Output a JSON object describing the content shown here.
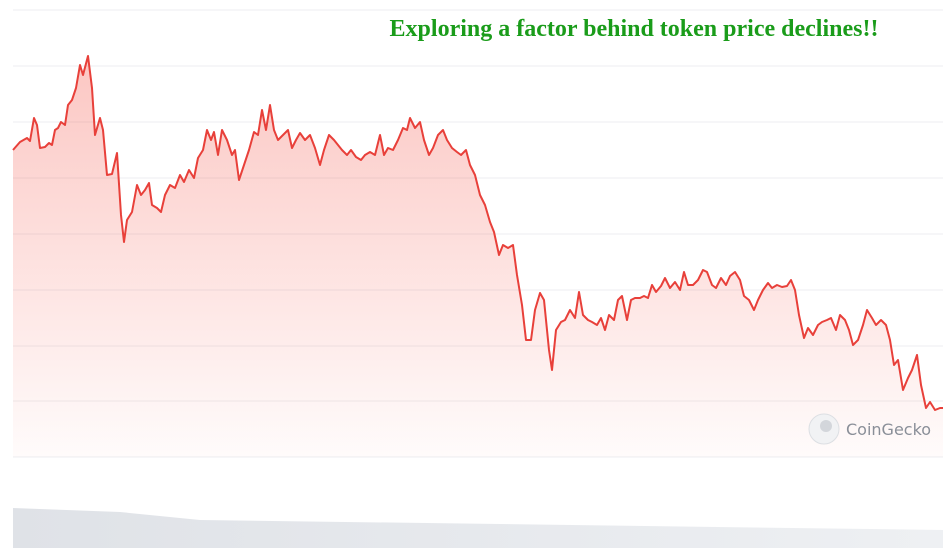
{
  "chart_data": {
    "type": "line",
    "title": "Exploring a factor behind token price declines!!",
    "watermark": "CoinGecko",
    "color": "#e8403a",
    "x": [
      13,
      20,
      27,
      30,
      34,
      37,
      40,
      45,
      49,
      52,
      55,
      58,
      61,
      65,
      68,
      72,
      76,
      80,
      83,
      88,
      92,
      95,
      100,
      103,
      107,
      112,
      117,
      121,
      124,
      127,
      132,
      137,
      141,
      145,
      149,
      152,
      157,
      161,
      165,
      170,
      175,
      180,
      184,
      189,
      194,
      198,
      203,
      207,
      211,
      214,
      218,
      222,
      227,
      232,
      235,
      239,
      244,
      249,
      254,
      258,
      262,
      266,
      270,
      274,
      278,
      283,
      288,
      292,
      296,
      300,
      305,
      310,
      315,
      320,
      324,
      329,
      334,
      338,
      342,
      347,
      351,
      356,
      361,
      365,
      370,
      375,
      380,
      384,
      388,
      393,
      398,
      403,
      407,
      410,
      415,
      420,
      424,
      429,
      433,
      438,
      443,
      447,
      452,
      457,
      461,
      466,
      470,
      475,
      480,
      485,
      490,
      494,
      499,
      503,
      508,
      513,
      517,
      522,
      526,
      531,
      535,
      540,
      544,
      549,
      552,
      556,
      561,
      565,
      570,
      575,
      579,
      583,
      588,
      592,
      597,
      601,
      605,
      609,
      614,
      618,
      622,
      627,
      631,
      635,
      640,
      644,
      648,
      652,
      656,
      661,
      665,
      670,
      675,
      680,
      684,
      688,
      693,
      698,
      703,
      707,
      712,
      716,
      721,
      726,
      730,
      735,
      740,
      744,
      749,
      754,
      758,
      763,
      768,
      772,
      777,
      782,
      787,
      791,
      795,
      799,
      804,
      808,
      813,
      818,
      822,
      827,
      831,
      836,
      840,
      845,
      849,
      853,
      858,
      863,
      867,
      872,
      876,
      881,
      886,
      890,
      894,
      898,
      903,
      908,
      912,
      917,
      921,
      926,
      930,
      935,
      940,
      943
    ],
    "values": [
      307,
      315,
      319,
      316,
      339,
      332,
      309,
      310,
      314,
      312,
      327,
      329,
      335,
      332,
      352,
      357,
      369,
      392,
      382,
      401,
      369,
      322,
      339,
      327,
      282,
      283,
      304,
      242,
      215,
      237,
      245,
      272,
      262,
      267,
      274,
      252,
      249,
      245,
      262,
      272,
      269,
      282,
      275,
      287,
      279,
      299,
      307,
      327,
      317,
      325,
      302,
      327,
      317,
      302,
      307,
      277,
      292,
      307,
      325,
      322,
      347,
      327,
      352,
      327,
      317,
      322,
      327,
      309,
      317,
      324,
      317,
      322,
      309,
      292,
      307,
      322,
      317,
      312,
      307,
      302,
      307,
      300,
      297,
      302,
      305,
      302,
      322,
      302,
      309,
      307,
      317,
      329,
      327,
      339,
      329,
      335,
      317,
      302,
      309,
      322,
      327,
      317,
      309,
      305,
      302,
      307,
      292,
      282,
      262,
      252,
      235,
      225,
      202,
      212,
      209,
      212,
      182,
      152,
      117,
      117,
      147,
      164,
      157,
      107,
      87,
      127,
      135,
      137,
      147,
      139,
      165,
      142,
      137,
      135,
      132,
      139,
      127,
      142,
      137,
      157,
      161,
      137,
      157,
      159,
      159,
      161,
      159,
      172,
      165,
      171,
      179,
      169,
      175,
      167,
      185,
      172,
      172,
      177,
      187,
      185,
      172,
      169,
      179,
      172,
      181,
      185,
      177,
      161,
      157,
      147,
      157,
      167,
      174,
      169,
      172,
      170,
      171,
      177,
      167,
      142,
      119,
      129,
      122,
      132,
      135,
      137,
      139,
      127,
      142,
      137,
      127,
      112,
      117,
      132,
      147,
      139,
      132,
      137,
      132,
      117,
      92,
      97,
      67,
      79,
      87,
      102,
      72,
      49,
      55,
      47,
      49,
      49
    ],
    "xlim": [
      13,
      943
    ],
    "ylim": [
      0,
      447
    ]
  }
}
